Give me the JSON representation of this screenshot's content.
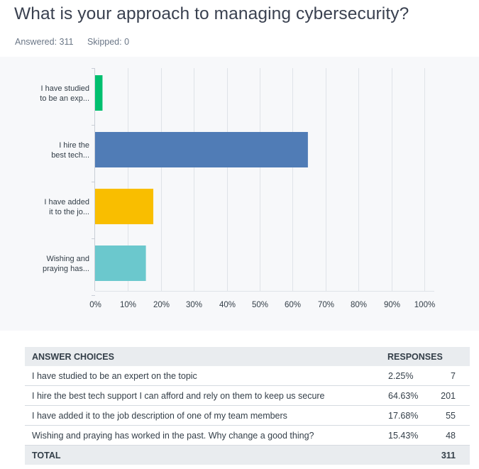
{
  "question": {
    "title": "What is your approach to managing cybersecurity?",
    "answered_label": "Answered: 311",
    "skipped_label": "Skipped: 0"
  },
  "colors": {
    "bar_1": "#00bf6f",
    "bar_2": "#507cb6",
    "bar_3": "#f9be00",
    "bar_4": "#6bc8cd",
    "chart_background": "#f7f8fa",
    "gridline": "#dfe3e8"
  },
  "chart_data": {
    "type": "bar",
    "orientation": "horizontal",
    "categories": [
      "I have studied to be an exp...",
      "I hire the best tech...",
      "I have added it to the jo...",
      "Wishing and praying has..."
    ],
    "category_lines": [
      [
        "I have studied",
        "to be an exp..."
      ],
      [
        "I hire the",
        "best tech..."
      ],
      [
        "I have added",
        "it to the jo..."
      ],
      [
        "Wishing and",
        "praying has..."
      ]
    ],
    "values": [
      2.25,
      64.63,
      17.68,
      15.43
    ],
    "xlim": [
      0,
      100
    ],
    "ticks": [
      "0%",
      "10%",
      "20%",
      "30%",
      "40%",
      "50%",
      "60%",
      "70%",
      "80%",
      "90%",
      "100%"
    ],
    "grid": true
  },
  "table": {
    "headers": {
      "choice": "ANSWER CHOICES",
      "responses": "RESPONSES"
    },
    "rows": [
      {
        "choice": "I have studied to be an expert on the topic",
        "percent": "2.25%",
        "count": "7"
      },
      {
        "choice": "I hire the best tech support I can afford and rely on them to keep us secure",
        "percent": "64.63%",
        "count": "201"
      },
      {
        "choice": "I have added it to the job description of one of my team members",
        "percent": "17.68%",
        "count": "55"
      },
      {
        "choice": "Wishing and praying has worked in the past. Why change a good thing?",
        "percent": "15.43%",
        "count": "48"
      }
    ],
    "total": {
      "label": "TOTAL",
      "count": "311"
    }
  }
}
